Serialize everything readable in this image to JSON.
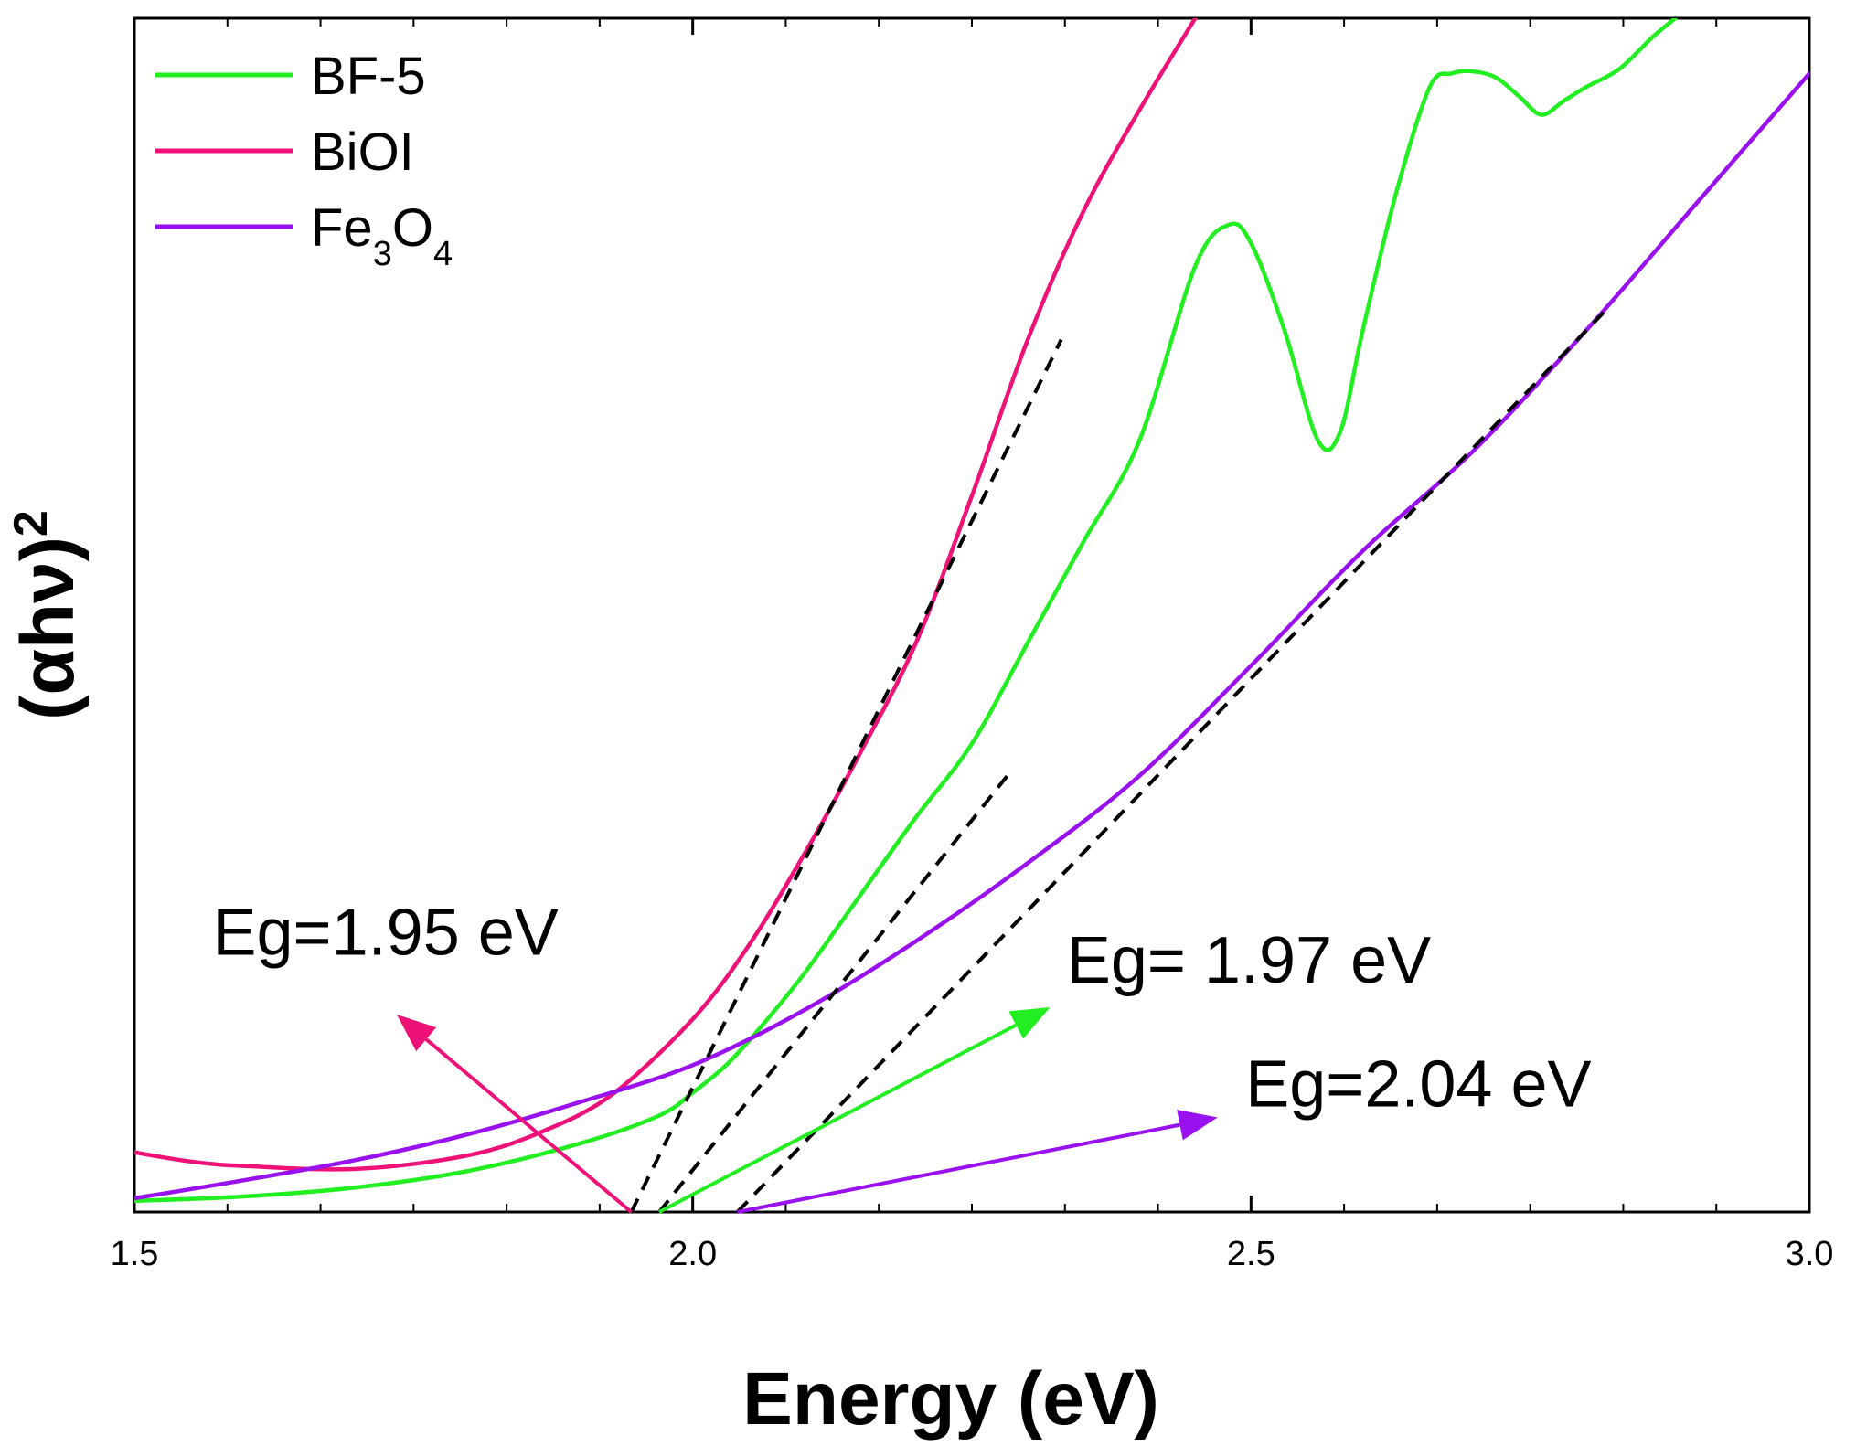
{
  "chart_data": {
    "type": "line",
    "title": "",
    "xlabel": "Energy (eV)",
    "ylabel": "(αhν)",
    "ylabel_superscript": "2",
    "xlim": [
      1.5,
      3.0
    ],
    "ylim": [
      0,
      13
    ],
    "x_ticks": [
      {
        "value": 1.5,
        "label": "1.5"
      },
      {
        "value": 2.0,
        "label": "2.0"
      },
      {
        "value": 2.5,
        "label": "2.5"
      },
      {
        "value": 3.0,
        "label": "3.0"
      }
    ],
    "x_minor_step": 0.083333,
    "show_y_ticks": false,
    "grid": false,
    "legend_position": "top-left",
    "series": [
      {
        "name": "BF-5",
        "legend_label": "BF-5",
        "color": "#22ee22",
        "x": [
          1.5,
          1.6,
          1.7,
          1.8,
          1.9,
          1.97,
          2.0,
          2.03,
          2.06,
          2.1,
          2.15,
          2.2,
          2.25,
          2.3,
          2.35,
          2.4,
          2.45,
          2.48,
          2.5,
          2.53,
          2.56,
          2.58,
          2.6,
          2.63,
          2.66,
          2.68,
          2.7,
          2.72,
          2.74,
          2.76,
          2.78,
          2.8,
          2.83,
          2.86,
          2.88
        ],
        "values": [
          0.12,
          0.17,
          0.27,
          0.45,
          0.75,
          1.05,
          1.3,
          1.6,
          2.0,
          2.6,
          3.45,
          4.3,
          5.1,
          6.2,
          7.3,
          8.4,
          10.3,
          10.75,
          10.55,
          9.6,
          8.4,
          8.5,
          9.6,
          11.1,
          12.25,
          12.4,
          12.42,
          12.35,
          12.15,
          11.95,
          12.1,
          12.25,
          12.45,
          12.8,
          13.0
        ]
      },
      {
        "name": "BiOI",
        "legend_label": "BiOI",
        "color": "#ee1177",
        "x": [
          1.5,
          1.55,
          1.6,
          1.7,
          1.8,
          1.87,
          1.93,
          2.0,
          2.05,
          2.1,
          2.15,
          2.2,
          2.25,
          2.3,
          2.35,
          2.4,
          2.45
        ],
        "values": [
          0.65,
          0.55,
          0.5,
          0.47,
          0.62,
          0.9,
          1.3,
          2.1,
          2.9,
          3.9,
          5.0,
          6.2,
          7.8,
          9.5,
          10.9,
          12.0,
          13.0
        ]
      },
      {
        "name": "Fe3O4",
        "legend_label": "Fe",
        "legend_sub1": "3",
        "legend_mid": "O",
        "legend_sub2": "4",
        "color": "#9911ee",
        "x": [
          1.5,
          1.6,
          1.7,
          1.8,
          1.9,
          2.0,
          2.1,
          2.2,
          2.3,
          2.4,
          2.5,
          2.6,
          2.7,
          2.8,
          2.9,
          3.0
        ],
        "values": [
          0.15,
          0.35,
          0.57,
          0.85,
          1.2,
          1.6,
          2.2,
          2.95,
          3.8,
          4.75,
          5.95,
          7.2,
          8.3,
          9.6,
          11.0,
          12.4
        ]
      }
    ],
    "fit_lines": [
      {
        "name": "BiOI tangent",
        "x": [
          1.945,
          2.33
        ],
        "values": [
          0.0,
          9.5
        ],
        "style": "dashed",
        "color": "#000000"
      },
      {
        "name": "BF-5 tangent",
        "x": [
          1.97,
          2.285
        ],
        "values": [
          0.0,
          4.8
        ],
        "style": "dashed",
        "color": "#000000"
      },
      {
        "name": "Fe3O4 tangent",
        "x": [
          2.04,
          2.82
        ],
        "values": [
          0.0,
          9.85
        ],
        "style": "dashed",
        "color": "#000000"
      }
    ],
    "annotations": [
      {
        "text": "Eg=1.95 eV",
        "color": "#ee1177",
        "arrow_from": [
          1.945,
          0.0
        ],
        "arrow_to": [
          1.735,
          2.15
        ],
        "text_anchor_data": [
          1.57,
          2.8
        ]
      },
      {
        "text": "Eg= 1.97 eV",
        "color": "#22ee22",
        "arrow_from": [
          1.97,
          0.0
        ],
        "arrow_to": [
          2.32,
          2.23
        ],
        "text_anchor_data": [
          2.335,
          2.5
        ]
      },
      {
        "text": "Eg=2.04 eV",
        "color": "#9911ee",
        "arrow_from": [
          2.04,
          0.0
        ],
        "arrow_to": [
          2.47,
          1.03
        ],
        "text_anchor_data": [
          2.495,
          1.15
        ]
      }
    ]
  }
}
